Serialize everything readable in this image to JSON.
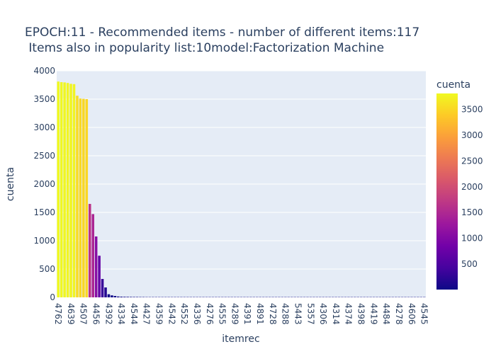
{
  "chart_data": {
    "type": "bar",
    "title": "EPOCH:11 - Recommended items - number of different items:117",
    "subtitle": " Items also in popularity list:10model:Factorization Machine",
    "xlabel": "itemrec",
    "ylabel": "cuenta",
    "ylim": [
      0,
      4000
    ],
    "yticks": [
      0,
      500,
      1000,
      1500,
      2000,
      2500,
      3000,
      3500,
      4000
    ],
    "xtick_labels": [
      "4762",
      "4639",
      "4507",
      "4456",
      "4392",
      "4334",
      "4544",
      "4427",
      "4359",
      "4542",
      "4552",
      "4336",
      "4276",
      "4555",
      "4289",
      "4391",
      "4891",
      "4728",
      "4288",
      "5443",
      "5357",
      "4306",
      "4314",
      "4374",
      "4398",
      "4419",
      "4484",
      "4278",
      "4606",
      "4545"
    ],
    "x_tick_every": 4,
    "colorbar": {
      "title": "cuenta",
      "ticks": [
        500,
        1000,
        1500,
        2000,
        2500,
        3000,
        3500
      ],
      "min": 5,
      "max": 3810
    },
    "values": [
      3810,
      3800,
      3795,
      3785,
      3770,
      3765,
      3560,
      3510,
      3505,
      3500,
      1650,
      1470,
      1075,
      735,
      325,
      175,
      55,
      35,
      25,
      15,
      12,
      10,
      9,
      8,
      7,
      7,
      6,
      6,
      5,
      5,
      5,
      5,
      5,
      5,
      5,
      5,
      5,
      5,
      5,
      5,
      5,
      5,
      5,
      5,
      5,
      5,
      5,
      5,
      5,
      5,
      5,
      5,
      5,
      5,
      5,
      5,
      5,
      5,
      5,
      5,
      5,
      5,
      5,
      5,
      5,
      5,
      5,
      5,
      5,
      5,
      5,
      5,
      5,
      5,
      5,
      5,
      5,
      5,
      5,
      5,
      5,
      5,
      5,
      5,
      5,
      5,
      5,
      5,
      5,
      5,
      5,
      5,
      5,
      5,
      5,
      5,
      5,
      5,
      5,
      5,
      5,
      5,
      5,
      5,
      5,
      5,
      5,
      5,
      5,
      5,
      5,
      5,
      5,
      5,
      5,
      5,
      5
    ]
  }
}
